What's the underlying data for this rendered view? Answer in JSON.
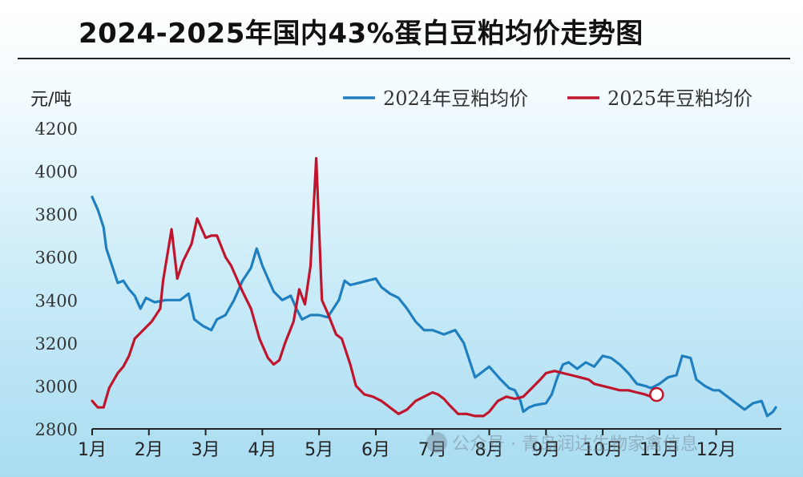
{
  "title": "2024-2025年国内43%蛋白豆粕均价走势图",
  "watermark": "公众号 · 青岛润达生物家禽信息",
  "colors": {
    "series_2024": "#1f7fbf",
    "series_2025": "#c0162d",
    "axis": "#222222",
    "marker_fill": "#ffffff"
  },
  "chart_data": {
    "type": "line",
    "title": "2024-2025年国内43%蛋白豆粕均价走势图",
    "ylabel": "元/吨",
    "xlabel": "",
    "ylim": [
      2800,
      4200
    ],
    "yticks": [
      2800,
      3000,
      3200,
      3400,
      3600,
      3800,
      4000,
      4200
    ],
    "xlim": [
      1,
      13.05
    ],
    "month_labels": [
      "1月",
      "2月",
      "3月",
      "4月",
      "5月",
      "6月",
      "7月",
      "8月",
      "9月",
      "10月",
      "11月",
      "12月"
    ],
    "grid": false,
    "legend_position": "top-right",
    "series": [
      {
        "name": "2024年豆粕均价",
        "color": "#1f7fbf",
        "points": [
          [
            1.0,
            3880
          ],
          [
            1.1,
            3820
          ],
          [
            1.2,
            3740
          ],
          [
            1.25,
            3640
          ],
          [
            1.35,
            3560
          ],
          [
            1.45,
            3480
          ],
          [
            1.55,
            3490
          ],
          [
            1.65,
            3450
          ],
          [
            1.75,
            3420
          ],
          [
            1.85,
            3360
          ],
          [
            1.95,
            3410
          ],
          [
            2.1,
            3390
          ],
          [
            2.3,
            3400
          ],
          [
            2.55,
            3400
          ],
          [
            2.7,
            3430
          ],
          [
            2.8,
            3310
          ],
          [
            2.95,
            3280
          ],
          [
            3.1,
            3260
          ],
          [
            3.2,
            3310
          ],
          [
            3.35,
            3330
          ],
          [
            3.5,
            3400
          ],
          [
            3.65,
            3490
          ],
          [
            3.8,
            3550
          ],
          [
            3.9,
            3640
          ],
          [
            4.0,
            3560
          ],
          [
            4.1,
            3500
          ],
          [
            4.2,
            3440
          ],
          [
            4.35,
            3400
          ],
          [
            4.5,
            3420
          ],
          [
            4.6,
            3360
          ],
          [
            4.7,
            3310
          ],
          [
            4.85,
            3330
          ],
          [
            5.0,
            3330
          ],
          [
            5.15,
            3320
          ],
          [
            5.25,
            3360
          ],
          [
            5.35,
            3400
          ],
          [
            5.45,
            3490
          ],
          [
            5.55,
            3470
          ],
          [
            5.7,
            3480
          ],
          [
            5.85,
            3490
          ],
          [
            6.0,
            3500
          ],
          [
            6.1,
            3460
          ],
          [
            6.25,
            3430
          ],
          [
            6.4,
            3410
          ],
          [
            6.55,
            3360
          ],
          [
            6.7,
            3300
          ],
          [
            6.85,
            3260
          ],
          [
            7.0,
            3260
          ],
          [
            7.2,
            3240
          ],
          [
            7.4,
            3260
          ],
          [
            7.55,
            3200
          ],
          [
            7.65,
            3120
          ],
          [
            7.75,
            3040
          ],
          [
            7.85,
            3060
          ],
          [
            8.0,
            3090
          ],
          [
            8.1,
            3060
          ],
          [
            8.2,
            3030
          ],
          [
            8.35,
            2990
          ],
          [
            8.45,
            2980
          ],
          [
            8.55,
            2930
          ],
          [
            8.6,
            2880
          ],
          [
            8.7,
            2900
          ],
          [
            8.8,
            2910
          ],
          [
            9.0,
            2920
          ],
          [
            9.1,
            2960
          ],
          [
            9.2,
            3040
          ],
          [
            9.3,
            3100
          ],
          [
            9.4,
            3110
          ],
          [
            9.55,
            3080
          ],
          [
            9.7,
            3110
          ],
          [
            9.85,
            3090
          ],
          [
            10.0,
            3140
          ],
          [
            10.15,
            3130
          ],
          [
            10.3,
            3100
          ],
          [
            10.45,
            3060
          ],
          [
            10.6,
            3010
          ],
          [
            10.75,
            3000
          ],
          [
            10.85,
            2990
          ],
          [
            11.0,
            3010
          ],
          [
            11.15,
            3040
          ],
          [
            11.3,
            3050
          ],
          [
            11.4,
            3140
          ],
          [
            11.55,
            3130
          ],
          [
            11.65,
            3030
          ],
          [
            11.8,
            3000
          ],
          [
            11.95,
            2980
          ],
          [
            12.05,
            2980
          ],
          [
            12.2,
            2950
          ],
          [
            12.35,
            2920
          ],
          [
            12.5,
            2890
          ],
          [
            12.65,
            2920
          ],
          [
            12.8,
            2930
          ],
          [
            12.9,
            2860
          ],
          [
            13.0,
            2880
          ],
          [
            13.05,
            2900
          ]
        ]
      },
      {
        "name": "2025年豆粕均价",
        "color": "#c0162d",
        "points": [
          [
            1.0,
            2930
          ],
          [
            1.1,
            2900
          ],
          [
            1.2,
            2900
          ],
          [
            1.3,
            2990
          ],
          [
            1.45,
            3060
          ],
          [
            1.55,
            3090
          ],
          [
            1.65,
            3140
          ],
          [
            1.75,
            3220
          ],
          [
            1.9,
            3260
          ],
          [
            2.05,
            3300
          ],
          [
            2.2,
            3360
          ],
          [
            2.25,
            3490
          ],
          [
            2.4,
            3730
          ],
          [
            2.5,
            3500
          ],
          [
            2.6,
            3580
          ],
          [
            2.75,
            3660
          ],
          [
            2.85,
            3780
          ],
          [
            3.0,
            3690
          ],
          [
            3.1,
            3700
          ],
          [
            3.2,
            3700
          ],
          [
            3.35,
            3600
          ],
          [
            3.45,
            3560
          ],
          [
            3.55,
            3500
          ],
          [
            3.65,
            3440
          ],
          [
            3.8,
            3360
          ],
          [
            3.95,
            3220
          ],
          [
            4.1,
            3130
          ],
          [
            4.2,
            3100
          ],
          [
            4.3,
            3120
          ],
          [
            4.4,
            3200
          ],
          [
            4.55,
            3300
          ],
          [
            4.65,
            3450
          ],
          [
            4.75,
            3380
          ],
          [
            4.85,
            3560
          ],
          [
            4.95,
            4060
          ],
          [
            5.0,
            3730
          ],
          [
            5.05,
            3400
          ],
          [
            5.15,
            3340
          ],
          [
            5.3,
            3240
          ],
          [
            5.4,
            3220
          ],
          [
            5.55,
            3100
          ],
          [
            5.65,
            3000
          ],
          [
            5.8,
            2960
          ],
          [
            5.95,
            2950
          ],
          [
            6.1,
            2930
          ],
          [
            6.25,
            2900
          ],
          [
            6.4,
            2870
          ],
          [
            6.55,
            2890
          ],
          [
            6.7,
            2930
          ],
          [
            6.85,
            2950
          ],
          [
            7.0,
            2970
          ],
          [
            7.1,
            2960
          ],
          [
            7.2,
            2940
          ],
          [
            7.3,
            2910
          ],
          [
            7.45,
            2870
          ],
          [
            7.6,
            2870
          ],
          [
            7.75,
            2860
          ],
          [
            7.9,
            2860
          ],
          [
            8.0,
            2880
          ],
          [
            8.15,
            2930
          ],
          [
            8.3,
            2950
          ],
          [
            8.45,
            2940
          ],
          [
            8.6,
            2950
          ],
          [
            8.75,
            2990
          ],
          [
            8.9,
            3030
          ],
          [
            9.0,
            3060
          ],
          [
            9.15,
            3070
          ],
          [
            9.3,
            3060
          ],
          [
            9.45,
            3050
          ],
          [
            9.6,
            3040
          ],
          [
            9.75,
            3030
          ],
          [
            9.85,
            3010
          ],
          [
            10.0,
            3000
          ],
          [
            10.15,
            2990
          ],
          [
            10.3,
            2980
          ],
          [
            10.45,
            2980
          ],
          [
            10.6,
            2970
          ],
          [
            10.75,
            2960
          ],
          [
            10.85,
            2950
          ],
          [
            10.95,
            2960
          ]
        ]
      }
    ],
    "marker": {
      "series": "2025年豆粕均价",
      "x": 10.95,
      "y": 2960
    }
  }
}
